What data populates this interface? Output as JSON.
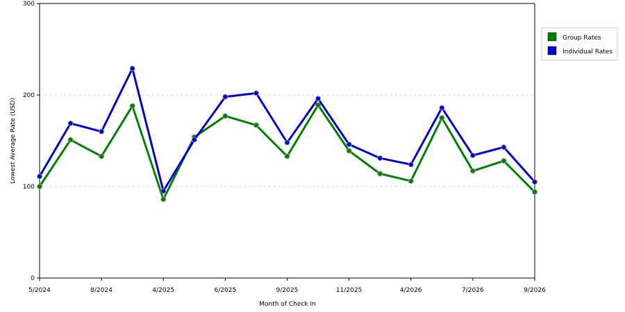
{
  "chart_data": {
    "type": "line",
    "title": "",
    "xlabel": "Month of Check In",
    "ylabel": "Lowest Average Rate (USD)",
    "ylim": [
      0,
      300
    ],
    "yticks": [
      0,
      100,
      200,
      300
    ],
    "grid": "horizontal dashed",
    "legend_position": "right",
    "x_tick_labels": [
      "5/2024",
      "8/2024",
      "4/2025",
      "6/2025",
      "9/2025",
      "11/2025",
      "4/2026",
      "7/2026",
      "9/2026"
    ],
    "x_tick_indices": [
      0,
      2,
      4,
      6,
      8,
      10,
      12,
      14,
      16
    ],
    "series": [
      {
        "name": "Group Rates",
        "color": "#008000",
        "values": [
          100,
          151,
          133,
          188,
          86,
          154,
          177,
          167,
          133,
          189,
          139,
          114,
          106,
          175,
          117,
          128,
          94
        ]
      },
      {
        "name": "Individual Rates",
        "color": "#0000cc",
        "values": [
          111,
          169,
          160,
          229,
          95,
          151,
          198,
          202,
          148,
          196,
          146,
          131,
          124,
          186,
          134,
          143,
          105
        ]
      }
    ]
  }
}
